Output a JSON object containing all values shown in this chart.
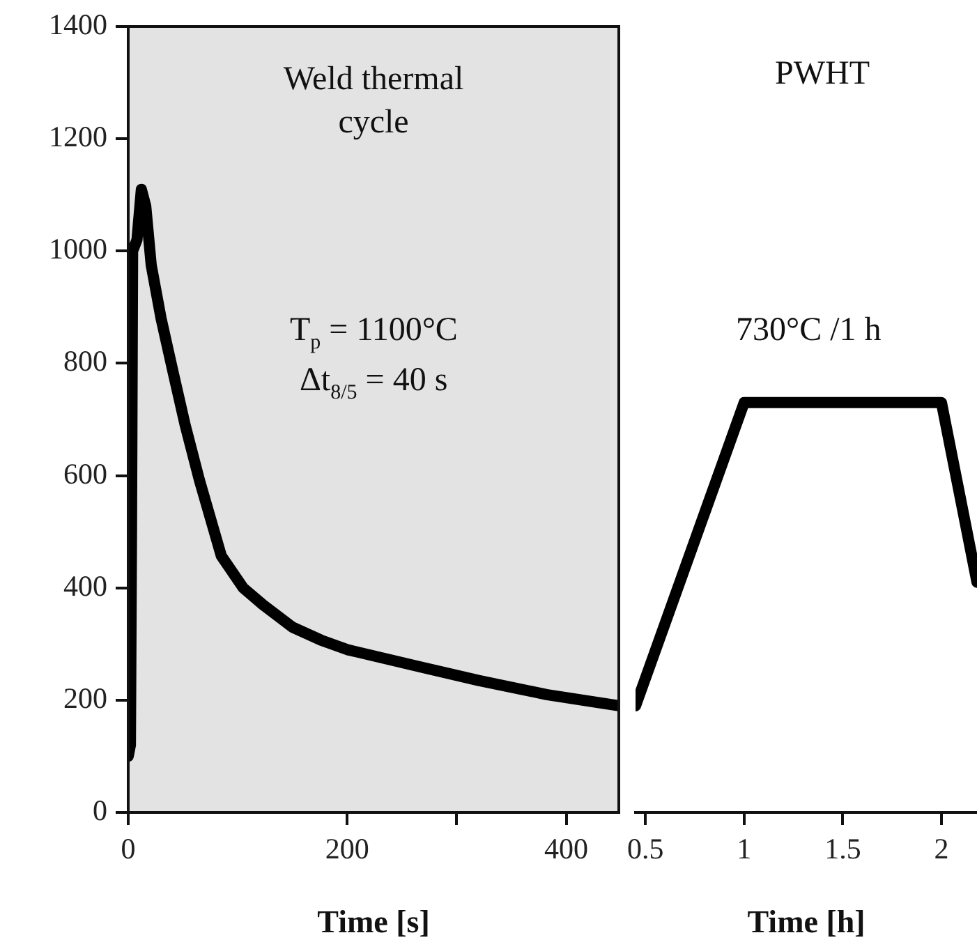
{
  "chart_data": [
    {
      "type": "line",
      "xlabel": "Time [s]",
      "x": [
        0,
        2,
        3,
        4,
        8,
        12,
        16,
        21,
        30,
        41,
        52,
        65,
        85,
        105,
        123,
        150,
        176,
        200,
        265,
        320,
        382,
        448
      ],
      "series": [
        {
          "color": "#000000",
          "values": [
            100,
            120,
            500,
            1000,
            1020,
            1110,
            1080,
            975,
            880,
            784,
            690,
            592,
            457,
            400,
            370,
            330,
            307,
            290,
            260,
            235,
            210,
            190
          ]
        }
      ],
      "xlim": [
        0,
        448
      ],
      "xticks": [
        0,
        200,
        {
          "value": 300,
          "label": null
        },
        400
      ],
      "ylim": [
        0,
        1400
      ],
      "yticks": [
        0,
        200,
        400,
        600,
        800,
        1000,
        1200,
        1400
      ],
      "bands": [
        {
          "axis": "x",
          "from": 0,
          "to": 448,
          "color": "#e3e3e3"
        }
      ],
      "annotations": [
        "Weld thermal cycle",
        "T$_{p}$ = 1100°C",
        "Δt$_{8/5}$ = 40 s"
      ],
      "grid": false,
      "legend": false,
      "marker": "none",
      "line_style": "solid"
    },
    {
      "type": "line",
      "xlabel": "Time [h]",
      "x": [
        0.45,
        1.0,
        2.0,
        2.18
      ],
      "series": [
        {
          "color": "#000000",
          "values": [
            190,
            730,
            730,
            410
          ]
        }
      ],
      "xlim": [
        0.45,
        2.18
      ],
      "xticks": [
        0.5,
        1,
        1.5,
        2
      ],
      "ylim": [
        0,
        1400
      ],
      "yticks": [
        0,
        200,
        400,
        600,
        800,
        1000,
        1200,
        1400
      ],
      "annotations": [
        "PWHT",
        "730°C  /1 h"
      ],
      "tick_labels": "x",
      "grid": false,
      "legend": false,
      "marker": "none",
      "line_style": "solid"
    }
  ]
}
